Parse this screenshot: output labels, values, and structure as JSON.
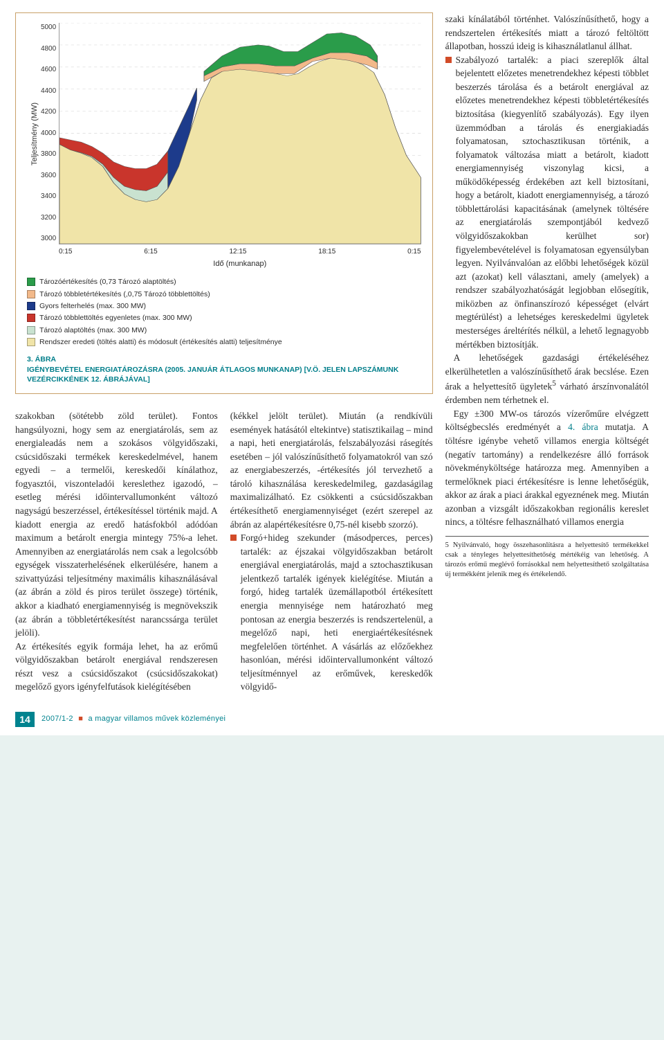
{
  "chart": {
    "type": "stacked-area",
    "ylabel": "Teljesítmény (MW)",
    "xlabel": "Idő (munkanap)",
    "ylim": [
      3000,
      5000
    ],
    "yticks": [
      5000,
      4800,
      4600,
      4400,
      4200,
      4000,
      3800,
      3600,
      3400,
      3200,
      3000
    ],
    "xticks": [
      "0:15",
      "6:15",
      "12:15",
      "18:15",
      "0:15"
    ],
    "background_color": "#ffffff",
    "grid_color": "#d9d9d9",
    "colors": {
      "base_load": "#f0e4a8",
      "taroz_alap": "#c9e2d0",
      "tobblettoltes": "#c9352c",
      "gyors_felt": "#1d3b8b",
      "tobbletert": "#f2b98a",
      "tarozert": "#2a9c4a"
    },
    "legend": [
      {
        "color": "#2a9c4a",
        "label": "Tározóértékesítés (0,73 Tározó alaptöltés)"
      },
      {
        "color": "#f2b98a",
        "label": "Tározó többletértékesítés (,0,75 Tározó többlettöltés)"
      },
      {
        "color": "#1d3b8b",
        "label": "Gyors felterhelés (max. 300 MW)"
      },
      {
        "color": "#c9352c",
        "label": "Tározó többlettöltés egyenletes (max. 300 MW)"
      },
      {
        "color": "#c9e2d0",
        "label": "Tározó alaptöltés (max. 300 MW)"
      },
      {
        "color": "#f0e4a8",
        "label": "Rendszer eredeti (töltés alatti) és módosult (értékesítés alatti) teljesítménye"
      }
    ],
    "caption_no": "3. ÁBRA",
    "caption_title": "IGÉNYBEVÉTEL ENERGIATÁROZÁSRA (2005. JANUÁR ÁTLAGOS MUNKANAP) [V.Ö. JELEN LAPSZÁMUNK VEZÉRCIKKÉNEK 12. ÁBRÁJÁVAL]"
  },
  "col1_start": "szakokban (sötétebb zöld terület). Fontos hangsúlyozni, hogy sem az energiatárolás, sem az energialeadás nem a szokásos völgyidőszaki, csúcsidőszaki termékek kereskedelmével, hanem egyedi – a termelői, kereskedői kínálathoz, fogyasztói, viszonteladói kereslethez igazodó, – esetleg mérési időintervallumonként változó nagyságú beszerzéssel, értékesítéssel történik majd. A kiadott energia az eredő hatásfokból adódóan maximum a betárolt energia mintegy 75%-a lehet. Amennyiben az energiatárolás nem csak a legolcsóbb egységek visszaterhelésének elkerülésére, hanem a szivattyúzási teljesítmény maximális kihasználásával (az ábrán a zöld és piros terület összege) történik, akkor a kiadható energiamennyiség is megnövekszik (az ábrán a többletértékesítést narancssárga terület jelöli).",
  "col1_p2": "Az értékesítés egyik formája lehet, ha az erőmű völgyidőszakban betárolt energiával rendszeresen részt vesz a csúcsidőszakot (csúcsidőszakokat) megelőző gyors igényfelfutások kielégítésében",
  "col2_p1": "(kékkel jelölt terület). Miután (a rendkívüli események hatásától eltekintve) statisztikailag – mind a napi, heti energiatárolás, felszabályozási rásegítés esetében – jól valószínűsíthető folyamatokról van szó az energiabeszerzés, -értékesítés jól tervezhető a tároló kihasználása kereskedelmileg, gazdaságilag maximalizálható. Ez csökkenti a csúcsidőszakban értékesíthető energiamennyiséget (ezért szerepel az ábrán az alapértékesítésre 0,75-nél kisebb szorzó).",
  "col2_bullet": "Forgó+hideg szekunder (másodperces, perces) tartalék: az éjszakai völgyidőszakban betárolt energiával energiatárolás, majd a sztochasztikusan jelentkező tartalék igények kielégítése. Miután a forgó, hideg tartalék üzemállapotból értékesített energia mennyisége nem határozható meg pontosan az energia beszerzés is rendszertelenül, a megelőző napi, heti energiaértékesítésnek megfelelően történhet. A vásárlás az előzőekhez hasonlóan, mérési időintervallumonként változó teljesítménnyel az erőművek, kereskedők völgyidő-",
  "col3_p1": "szaki kínálatából történhet. Valószínűsíthető, hogy a rendszertelen értékesítés miatt a tározó feltöltött állapotban, hosszú ideig is kihasználatlanul állhat.",
  "col3_bullet": "Szabályozó tartalék: a piaci szereplők által bejelentett előzetes menetrendekhez képesti többlet beszerzés tárolása és a betárolt energiával az előzetes menetrendekhez képesti többletértékesítés biztosítása (kiegyenlítő szabályozás). Egy ilyen üzemmódban a tárolás és energiakiadás folyamatosan, sztochasztikusan történik, a folyamatok változása miatt a betárolt, kiadott energiamennyiség viszonylag kicsi, a működőképesség érdekében azt kell biztosítani, hogy a betárolt, kiadott energiamennyiség, a tározó többlettárolási kapacitásának (amelynek töltésére az energiatárolás szempontjából kedvező völgyidőszakokban kerülhet sor) figyelembevételével is folyamatosan egyensúlyban legyen. Nyilvánvalóan az előbbi lehetőségek közül azt (azokat) kell választani, amely (amelyek) a rendszer szabályozhatóságát legjobban elősegítik, miközben az önfinanszírozó képességet (elvárt megtérülést) a lehetséges kereskedelmi ügyletek mesterséges áreltérítés nélkül, a lehető legnagyobb mértékben biztosítják.",
  "col3_p2a": "A lehetőségek gazdasági értékeléséhez elkerülhetetlen a valószínűsíthető árak becslése. Ezen árak a helyettesítő ügyletek",
  "col3_sup": "5",
  "col3_p2b": " várható árszínvonalától érdemben nem térhetnek el.",
  "col3_p3a": "Egy ±300 MW-os tározós vízerőműre elvégzett költségbecslés eredményét a ",
  "col3_figref": "4. ábra",
  "col3_p3b": " mutatja. A töltésre igénybe vehető villamos energia költségét (negatív tartomány) a rendelkezésre álló források növekményköltsége határozza meg. Amennyiben a termelőknek piaci értékesítésre is lenne lehetőségük, akkor az árak a piaci árakkal egyeznének meg. Miután azonban a vizsgált időszakokban regionális kereslet nincs, a töltésre felhasználható villamos energia",
  "footnote": "5 Nyilvánvaló, hogy összehasonlításra a helyettesítő termékekkel csak a tényleges helyettesíthetőség mértékéig van lehetőség. A tározós erőmű meglévő forrásokkal nem helyettesíthető szolgáltatása új termékként jelenik meg és értékelendő.",
  "footer": {
    "page": "14",
    "issue": "2007/1-2",
    "journal": "a magyar villamos művek közleményei"
  }
}
